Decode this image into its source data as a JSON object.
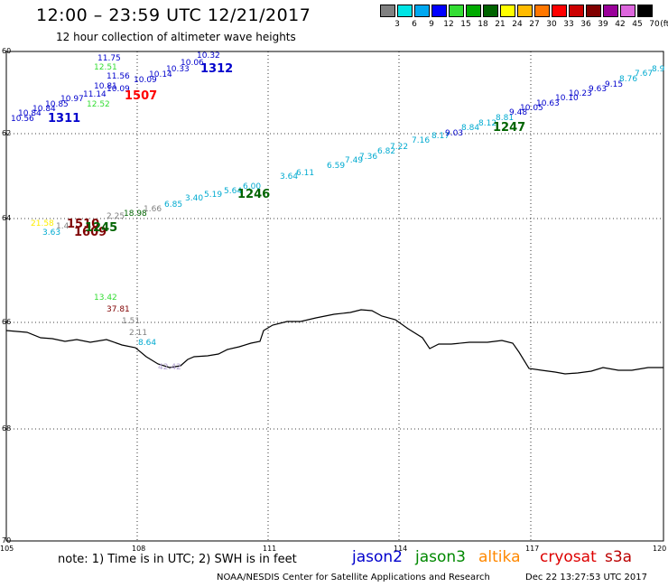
{
  "header": {
    "title": "12:00 – 23:59 UTC 12/21/2017",
    "subtitle": "12 hour collection of altimeter wave heights"
  },
  "legend": {
    "units": "(ft)",
    "ticks": [
      "3",
      "6",
      "9",
      "12",
      "15",
      "18",
      "21",
      "24",
      "27",
      "30",
      "33",
      "36",
      "39",
      "42",
      "45",
      "70"
    ],
    "colors": [
      "#808080",
      "#00e5e5",
      "#00a8f0",
      "#0000ff",
      "#33dd33",
      "#00aa00",
      "#006400",
      "#ffff00",
      "#ffbb00",
      "#ff7700",
      "#ff0000",
      "#cc0000",
      "#800000",
      "#990099",
      "#dd66dd",
      "#000000"
    ]
  },
  "axes": {
    "lon_labels": [
      "105",
      "108",
      "111",
      "114",
      "117",
      "120"
    ],
    "lat_labels": [
      "60",
      "62",
      "64",
      "66",
      "68",
      "70"
    ]
  },
  "tracks": [
    {
      "name": "track-upper-blue",
      "values": [
        {
          "t": "10.56",
          "c": "#0000cc"
        },
        {
          "t": "10.84",
          "c": "#0000cc"
        },
        {
          "t": "10.84",
          "c": "#0000cc"
        },
        {
          "t": "10.85",
          "c": "#0000cc"
        },
        {
          "t": "10.97",
          "c": "#0000cc"
        },
        {
          "t": "12.52",
          "c": "#33dd33"
        },
        {
          "t": "11.14",
          "c": "#0000cc"
        },
        {
          "t": "10.81",
          "c": "#0000cc"
        },
        {
          "t": "11.56",
          "c": "#0000cc"
        },
        {
          "t": "12.51",
          "c": "#33dd33"
        },
        {
          "t": "11.75",
          "c": "#0000cc"
        },
        {
          "t": "10.09",
          "c": "#0000cc"
        },
        {
          "t": "10.09",
          "c": "#0000cc"
        },
        {
          "t": "10.14",
          "c": "#0000cc"
        },
        {
          "t": "10.33",
          "c": "#0000cc"
        },
        {
          "t": "10.06",
          "c": "#0000cc"
        },
        {
          "t": "10.32",
          "c": "#0000cc"
        }
      ]
    },
    {
      "name": "track-long-cyan",
      "values": [
        {
          "t": "3.64",
          "c": "#00aad0"
        },
        {
          "t": "6.11",
          "c": "#00aad0"
        },
        {
          "t": "6.59",
          "c": "#00aad0"
        },
        {
          "t": "7.49",
          "c": "#00aad0"
        },
        {
          "t": "7.36",
          "c": "#00aad0"
        },
        {
          "t": "6.82",
          "c": "#00aad0"
        },
        {
          "t": "7.22",
          "c": "#00aad0"
        },
        {
          "t": "7.16",
          "c": "#00aad0"
        },
        {
          "t": "8.17",
          "c": "#00aad0"
        },
        {
          "t": "9.03",
          "c": "#0000cc"
        },
        {
          "t": "8.84",
          "c": "#00aad0"
        },
        {
          "t": "8.12",
          "c": "#00aad0"
        },
        {
          "t": "8.81",
          "c": "#00aad0"
        },
        {
          "t": "9.48",
          "c": "#0000cc"
        },
        {
          "t": "10.05",
          "c": "#0000cc"
        },
        {
          "t": "10.63",
          "c": "#0000cc"
        },
        {
          "t": "10.10",
          "c": "#0000cc"
        },
        {
          "t": "10.23",
          "c": "#0000cc"
        },
        {
          "t": "9.63",
          "c": "#0000cc"
        },
        {
          "t": "9.15",
          "c": "#0000cc"
        },
        {
          "t": "8.76",
          "c": "#00aad0"
        },
        {
          "t": "7.67",
          "c": "#00aad0"
        },
        {
          "t": "8.9",
          "c": "#00aad0"
        }
      ]
    },
    {
      "name": "track-lower-mixed",
      "values": [
        {
          "t": "21.58",
          "c": "#ffee00"
        },
        {
          "t": "3.63",
          "c": "#00aad0"
        },
        {
          "t": "1.4",
          "c": "#808080"
        },
        {
          "t": "2.25",
          "c": "#808080"
        },
        {
          "t": "18.98",
          "c": "#006400"
        },
        {
          "t": "1.66",
          "c": "#808080"
        },
        {
          "t": "6.85",
          "c": "#00aad0"
        },
        {
          "t": "3.40",
          "c": "#00aad0"
        },
        {
          "t": "5.19",
          "c": "#00aad0"
        },
        {
          "t": "5.64",
          "c": "#00aad0"
        },
        {
          "t": "6.00",
          "c": "#00aad0"
        }
      ]
    },
    {
      "name": "track-coast-vertical",
      "values": [
        {
          "t": "13.42",
          "c": "#33dd33"
        },
        {
          "t": "37.81",
          "c": "#800000"
        },
        {
          "t": "1.51",
          "c": "#808080"
        },
        {
          "t": "2.11",
          "c": "#808080"
        },
        {
          "t": "8.64",
          "c": "#00aad0"
        },
        {
          "t": "42.42",
          "c": "#b0a0d0"
        }
      ]
    }
  ],
  "time_labels": [
    {
      "t": "1311",
      "c": "#0000cc"
    },
    {
      "t": "1312",
      "c": "#0000cc"
    },
    {
      "t": "1507",
      "c": "#ff0000"
    },
    {
      "t": "1247",
      "c": "#006400"
    },
    {
      "t": "1246",
      "c": "#006400"
    },
    {
      "t": "1510",
      "c": "#800000"
    },
    {
      "t": "1609",
      "c": "#800000"
    },
    {
      "t": "1245",
      "c": "#006400"
    }
  ],
  "footer": {
    "note": "note:  1) Time is in UTC;  2) SWH is in feet",
    "missions": [
      {
        "name": "jason2",
        "color": "#0000cc"
      },
      {
        "name": "jason3",
        "color": "#008800"
      },
      {
        "name": "altika",
        "color": "#ff8800"
      },
      {
        "name": "cryosat",
        "color": "#dd0000"
      },
      {
        "name": "s3a",
        "color": "#bb0000"
      }
    ],
    "credit": "NOAA/NESDIS Center for Satellite Applications and Research",
    "timestamp": "Dec 22 13:27:53 UTC 2017"
  }
}
